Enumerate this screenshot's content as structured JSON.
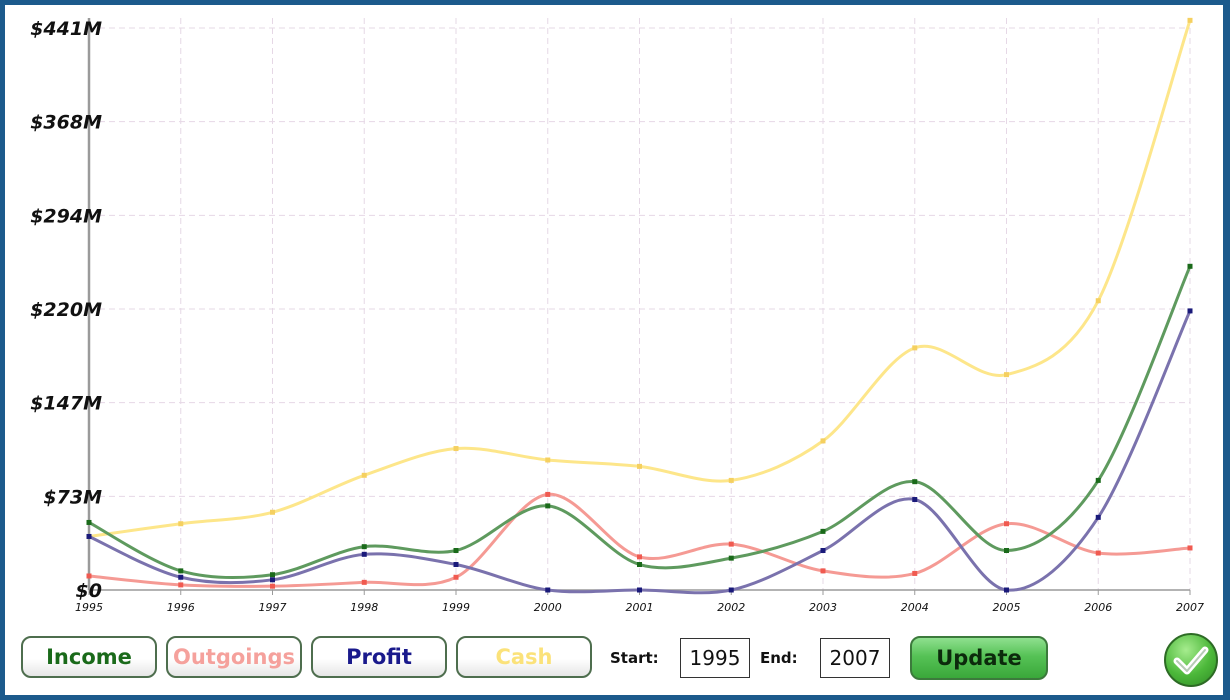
{
  "chart_data": {
    "type": "line",
    "x": [
      "1995",
      "1996",
      "1997",
      "1998",
      "1999",
      "2000",
      "2001",
      "2002",
      "2003",
      "2004",
      "2005",
      "2006",
      "2007"
    ],
    "y_ticks": [
      "$0",
      "$73M",
      "$147M",
      "$220M",
      "$294M",
      "$368M",
      "$441M"
    ],
    "ylim": [
      0,
      441
    ],
    "grid": true,
    "series": [
      {
        "name": "Income",
        "color": "#5e9a5e",
        "marker": "#1a6a1a",
        "values": [
          53,
          15,
          12,
          34,
          31,
          66,
          20,
          25,
          46,
          85,
          31,
          86,
          254
        ]
      },
      {
        "name": "Outgoings",
        "color": "#f59a94",
        "marker": "#f05a50",
        "values": [
          11,
          4,
          3,
          6,
          10,
          75,
          26,
          36,
          15,
          13,
          52,
          29,
          33
        ]
      },
      {
        "name": "Profit",
        "color": "#7a72ad",
        "marker": "#1a1a7a",
        "values": [
          42,
          10,
          8,
          28,
          20,
          0,
          0,
          0,
          31,
          71,
          0,
          57,
          219
        ]
      },
      {
        "name": "Cash",
        "color": "#fde68a",
        "marker": "#f5d060",
        "values": [
          42,
          52,
          61,
          90,
          111,
          102,
          97,
          86,
          117,
          190,
          169,
          227,
          447
        ]
      }
    ]
  },
  "controls": {
    "buttons": [
      {
        "label": "Income",
        "color": "#1a6a1a"
      },
      {
        "label": "Outgoings",
        "color": "#f5a19c"
      },
      {
        "label": "Profit",
        "color": "#1a1a8c"
      },
      {
        "label": "Cash",
        "color": "#fbe27a"
      }
    ],
    "start_label": "Start:",
    "start_value": "1995",
    "end_label": "End:",
    "end_value": "2007",
    "update_label": "Update",
    "ok_icon": "checkmark-icon"
  }
}
